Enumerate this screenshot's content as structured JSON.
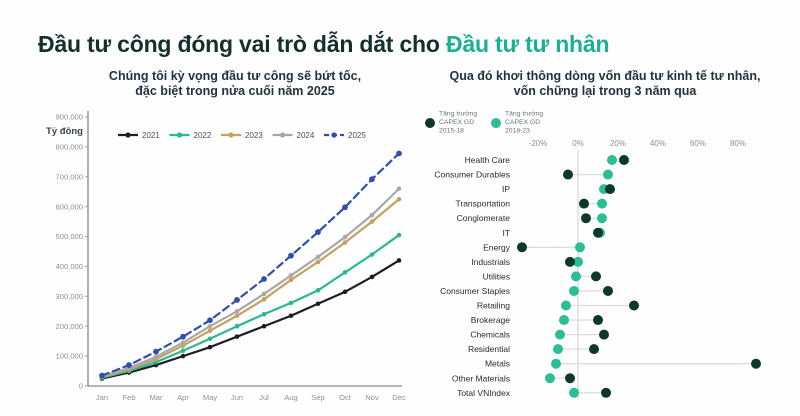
{
  "title": {
    "prefix": "Đầu tư công đóng vai trò dẫn dắt cho",
    "highlight": "Đầu tư tư nhân"
  },
  "colors": {
    "title_dark": "#142f2d",
    "accent_teal": "#1ab093",
    "subtitle_dark": "#25313d",
    "axis_line": "#6a6f76",
    "tick_text": "#8a9098",
    "category_text": "#262b33",
    "connector": "#dcdfe2",
    "zero_line": "#c9cdd2",
    "legend_text": "#4a4f57"
  },
  "chart_data": [
    {
      "type": "line",
      "title_line1": "Chúng tôi kỳ vọng đầu tư công sẽ bứt tốc,",
      "title_line2": "đặc biệt trong nửa cuối năm 2025",
      "ylabel": "Tỷ đồng",
      "ylim": [
        0,
        900000
      ],
      "grid": false,
      "legend_position": "top",
      "x": [
        "Jan",
        "Feb",
        "Mar",
        "Apr",
        "May",
        "Jun",
        "Jul",
        "Aug",
        "Sep",
        "Oct",
        "Nov",
        "Dec"
      ],
      "yticks": [
        {
          "v": 0,
          "label": "0"
        },
        {
          "v": 100000,
          "label": "100,000"
        },
        {
          "v": 200000,
          "label": "200,000"
        },
        {
          "v": 300000,
          "label": "300,000"
        },
        {
          "v": 400000,
          "label": "400,000"
        },
        {
          "v": 500000,
          "label": "500,000"
        },
        {
          "v": 600000,
          "label": "600,000"
        },
        {
          "v": 700000,
          "label": "700,000"
        },
        {
          "v": 800000,
          "label": "800,000"
        },
        {
          "v": 900000,
          "label": "900,000"
        }
      ],
      "series": [
        {
          "name": "2021",
          "color": "#1d1e22",
          "dashed": false,
          "values": [
            25000,
            45000,
            70000,
            100000,
            130000,
            165000,
            200000,
            235000,
            275000,
            315000,
            365000,
            420000
          ]
        },
        {
          "name": "2022",
          "color": "#2bb795",
          "dashed": false,
          "values": [
            28000,
            50000,
            80000,
            118000,
            158000,
            200000,
            240000,
            278000,
            320000,
            380000,
            440000,
            505000
          ]
        },
        {
          "name": "2023",
          "color": "#c6a15d",
          "dashed": false,
          "values": [
            30000,
            55000,
            90000,
            135000,
            185000,
            235000,
            290000,
            355000,
            415000,
            480000,
            550000,
            625000
          ]
        },
        {
          "name": "2024",
          "color": "#a8a8ac",
          "dashed": false,
          "values": [
            32000,
            60000,
            98000,
            145000,
            200000,
            250000,
            308000,
            370000,
            432000,
            498000,
            572000,
            660000
          ]
        },
        {
          "name": "2025",
          "color": "#2e4fae",
          "dashed": true,
          "values": [
            35000,
            70000,
            115000,
            165000,
            220000,
            288000,
            358000,
            436000,
            515000,
            598000,
            692000,
            778000
          ]
        }
      ]
    },
    {
      "type": "scatter",
      "subtype": "dumbbell",
      "title_line1": "Qua đó khơi thông dòng vốn đầu tư kinh tế tư nhân,",
      "title_line2": "vốn chững lại trong 3 năm qua",
      "xlabel_unit": "%",
      "xlim": [
        -30,
        92
      ],
      "legend_position": "top-left",
      "xticks": [
        {
          "v": -20,
          "label": "-20%"
        },
        {
          "v": 0,
          "label": "0%"
        },
        {
          "v": 20,
          "label": "20%"
        },
        {
          "v": 40,
          "label": "40%"
        },
        {
          "v": 60,
          "label": "60%"
        },
        {
          "v": 80,
          "label": "80%"
        }
      ],
      "categories": [
        "Health Care",
        "Consumer Durables",
        "IP",
        "Transportation",
        "Conglomerate",
        "IT",
        "Energy",
        "Industrials",
        "Utilities",
        "Consumer Staples",
        "Retailing",
        "Brokerage",
        "Chemicals",
        "Residential",
        "Metals",
        "Other Materials",
        "Total VNIndex"
      ],
      "series": [
        {
          "name": "Tăng trưởng CAPEX GD 2015-18",
          "legend_lines": [
            "Tăng trưởng",
            "CAPEX GD",
            "2015-18"
          ],
          "color": "#0d3a27",
          "values": [
            23,
            -5,
            16,
            3,
            4,
            10,
            -28,
            -4,
            9,
            15,
            28,
            10,
            13,
            8,
            89,
            -4,
            14
          ]
        },
        {
          "name": "Tăng trưởng CAPEX GD 2018-23",
          "legend_lines": [
            "Tăng trưởng",
            "CAPEX GD",
            "2018-23"
          ],
          "color": "#2bbd96",
          "values": [
            17,
            15,
            13,
            12,
            12,
            11,
            1,
            0,
            -1,
            -2,
            -6,
            -7,
            -9,
            -10,
            -11,
            -14,
            -2
          ]
        }
      ]
    }
  ]
}
